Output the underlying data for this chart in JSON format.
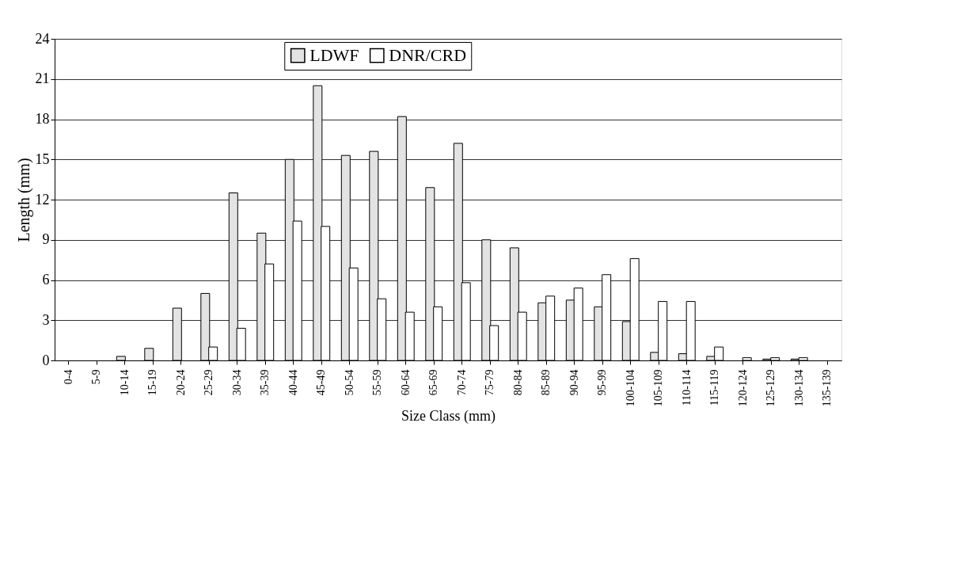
{
  "chart_data": {
    "type": "bar",
    "xlabel": "Size Class (mm)",
    "ylabel": "Length (mm)",
    "categories": [
      "0-4",
      "5-9",
      "10-14",
      "15-19",
      "20-24",
      "25-29",
      "30-34",
      "35-39",
      "40-44",
      "45-49",
      "50-54",
      "55-59",
      "60-64",
      "65-69",
      "70-74",
      "75-79",
      "80-84",
      "85-89",
      "90-94",
      "95-99",
      "100-104",
      "105-109",
      "110-114",
      "115-119",
      "120-124",
      "125-129",
      "130-134",
      "135-139"
    ],
    "series": [
      {
        "name": "LDWF",
        "color": "#e3e3e3",
        "values": [
          0,
          0,
          0.3,
          0.9,
          3.9,
          5.0,
          12.5,
          9.5,
          15.0,
          20.5,
          15.3,
          15.6,
          18.2,
          12.9,
          16.2,
          9.0,
          8.4,
          4.3,
          4.5,
          4.0,
          2.9,
          0.6,
          0.5,
          0.3,
          0,
          0.1,
          0.1,
          0
        ]
      },
      {
        "name": "DNR/CRD",
        "color": "#ffffff",
        "values": [
          0,
          0,
          0,
          0,
          0,
          1.0,
          2.4,
          7.2,
          10.4,
          10.0,
          6.9,
          4.6,
          3.6,
          4.0,
          5.8,
          2.6,
          3.6,
          4.8,
          5.4,
          6.4,
          7.6,
          4.4,
          4.4,
          1.0,
          0.2,
          0.2,
          0.2,
          0
        ]
      }
    ],
    "ylim": [
      0,
      24
    ],
    "yticks": [
      0,
      3,
      6,
      9,
      12,
      15,
      18,
      21,
      24
    ],
    "grid": "y",
    "legend": "top"
  }
}
